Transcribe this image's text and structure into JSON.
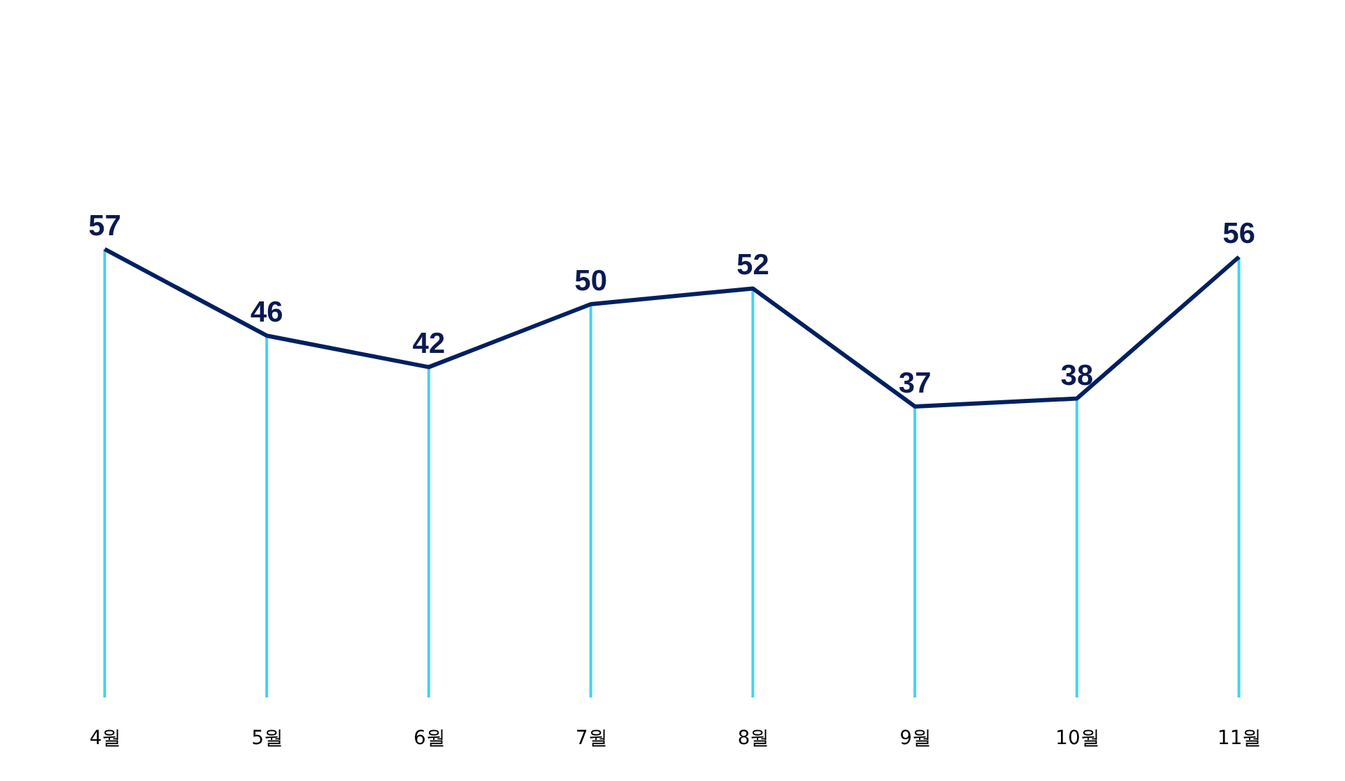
{
  "chart_data": {
    "type": "line",
    "categories": [
      "4월",
      "5월",
      "6월",
      "7월",
      "8월",
      "9월",
      "10월",
      "11월"
    ],
    "series": [
      {
        "type": "bar",
        "color": "#33ccf0",
        "values": [
          57,
          46,
          42,
          50,
          52,
          37,
          38,
          56
        ]
      },
      {
        "color": "#002060",
        "values": [
          57,
          46,
          42,
          50,
          52,
          37,
          38,
          56
        ],
        "value_labels": [
          "57",
          "46",
          "42",
          "50",
          "52",
          "37",
          "38",
          "56"
        ]
      }
    ],
    "grid": false,
    "tick_labels": "x",
    "marker": "none",
    "line_style": "solid"
  }
}
